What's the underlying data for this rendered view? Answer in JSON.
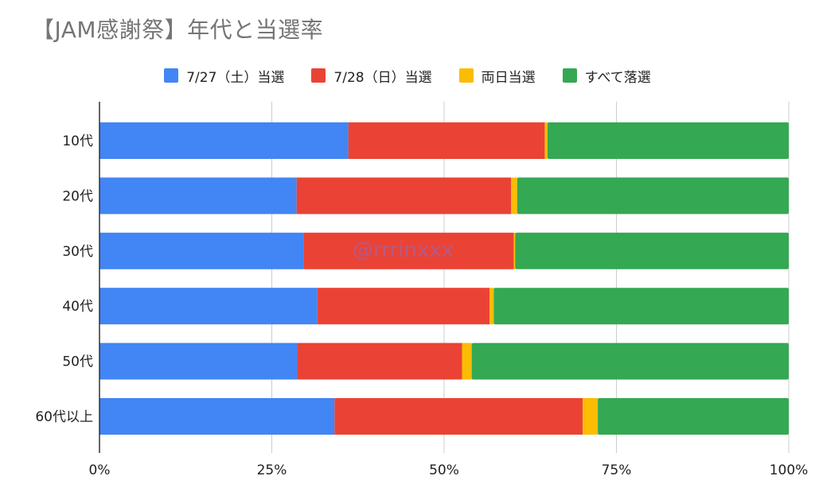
{
  "chart_data": {
    "type": "bar",
    "orientation": "horizontal",
    "stacked": true,
    "normalized_to_percent": true,
    "title": "【JAM感謝祭】年代と当選率",
    "categories": [
      "10代",
      "20代",
      "30代",
      "40代",
      "50代",
      "60代以上"
    ],
    "series": [
      {
        "name": "7/27（土）当選",
        "color": "#4285F4",
        "values": [
          36.1,
          28.6,
          29.6,
          31.6,
          28.7,
          34.1
        ]
      },
      {
        "name": "7/28（日）当選",
        "color": "#EA4335",
        "values": [
          28.5,
          31.1,
          30.5,
          25.0,
          23.9,
          36.0
        ]
      },
      {
        "name": "両日当選",
        "color": "#FBBC04",
        "values": [
          0.4,
          0.9,
          0.2,
          0.6,
          1.4,
          2.2
        ]
      },
      {
        "name": "すべて落選",
        "color": "#34A853",
        "values": [
          35.0,
          39.4,
          39.7,
          42.8,
          46.0,
          27.7
        ]
      }
    ],
    "x_ticks": [
      "0%",
      "25%",
      "50%",
      "75%",
      "100%"
    ],
    "xlim": [
      0,
      100
    ],
    "grid": true,
    "legend_position": "top-center",
    "watermark": "@rrrinxxx"
  }
}
